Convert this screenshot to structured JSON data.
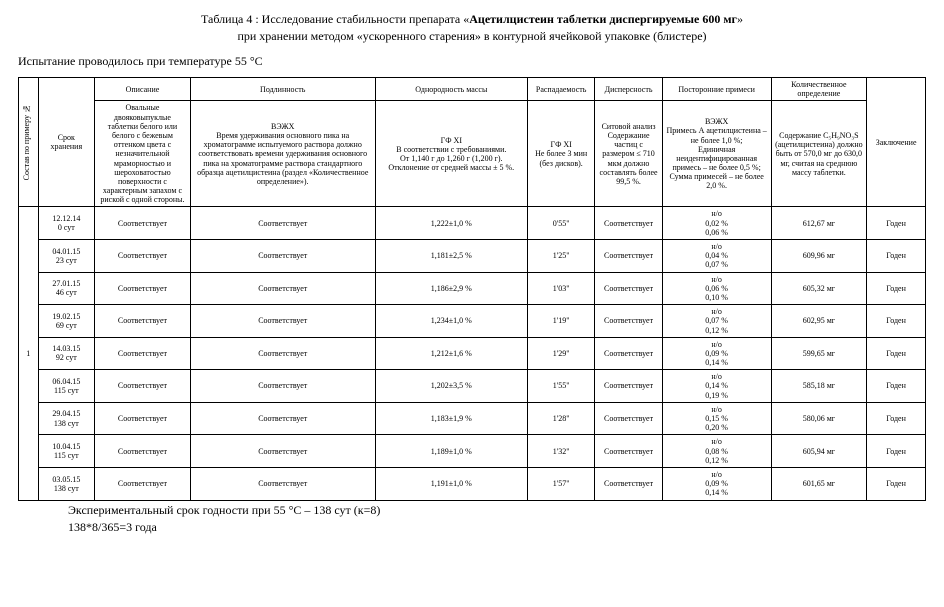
{
  "title_prefix": "Таблица 4 : Исследование стабильности препарата «",
  "title_bold": "Ацетилцистеин таблетки диспергируемые 600 мг",
  "title_suffix": "»",
  "subtitle": "при хранении методом «ускоренного старения» в контурной ячейковой упаковке (блистере)",
  "conditions": "Испытание проводилось при температуре 55 °С",
  "headers": {
    "composition": "Состав по примеру №",
    "storage": "Срок хранения",
    "description": "Описание",
    "authenticity": "Подлинность",
    "mass_uniformity": "Однородность массы",
    "disintegration": "Распадаемость",
    "dispersity": "Дисперсность",
    "impurities": "Посторонние примеси",
    "quantitative": "Количественное определение",
    "conclusion": "Заключение"
  },
  "specs": {
    "description": "Овальные двояковыпуклые таблетки белого или белого с бежевым оттенком цвета с незначительной мраморностью и шероховатостью поверхности с характерным запахом с риской с одной стороны.",
    "authenticity": "ВЭЖХ\nВремя удерживания основного пика на хроматограмме испытуемого раствора должно соответствовать времени удерживания основного пика на хроматограмме раствора стандартного образца ацетилцистеина (раздел «Количественное определение»).",
    "mass_uniformity": "ГФ XI\nВ соответствии с требованиями.\nОт 1,140 г до 1,260 г (1,200 г).\nОтклонение от средней массы ± 5 %.",
    "disintegration": "ГФ XI\nНе более 3 мин (без дисков).",
    "dispersity": "Ситовой анализ\nСодержание частиц с размером ≤ 710 мкм должно составлять более 99,5 %.",
    "impurities": "ВЭЖХ\nПримесь А ацетилцистеина – не более 1,0 %;\nЕдиничная неидентифицированная примесь – не более 0,5 %;\nСумма примесей – не более 2,0 %.",
    "quantitative": "Содержание C₅H₉NO₃S (ацетилцистеина) должно быть от 570,0 мг до 630,0 мг, считая на среднюю массу таблетки."
  },
  "group_no": "1",
  "rows": [
    {
      "date": "12.12.14\n0 сут",
      "desc": "Соответствует",
      "auth": "Соответствует",
      "mass": "1,222±1,0 %",
      "disint": "0'55\"",
      "disp": "Соответствует",
      "imp": "н/о\n0,02 %\n0,06 %",
      "quant": "612,67 мг",
      "concl": "Годен"
    },
    {
      "date": "04.01.15\n23 сут",
      "desc": "Соответствует",
      "auth": "Соответствует",
      "mass": "1,181±2,5 %",
      "disint": "1'25\"",
      "disp": "Соответствует",
      "imp": "н/о\n0,04 %\n0,07 %",
      "quant": "609,96 мг",
      "concl": "Годен"
    },
    {
      "date": "27.01.15\n46 сут",
      "desc": "Соответствует",
      "auth": "Соответствует",
      "mass": "1,186±2,9 %",
      "disint": "1'03\"",
      "disp": "Соответствует",
      "imp": "н/о\n0,06 %\n0,10 %",
      "quant": "605,32 мг",
      "concl": "Годен"
    },
    {
      "date": "19.02.15\n69 сут",
      "desc": "Соответствует",
      "auth": "Соответствует",
      "mass": "1,234±1,0 %",
      "disint": "1'19\"",
      "disp": "Соответствует",
      "imp": "н/о\n0,07 %\n0,12 %",
      "quant": "602,95 мг",
      "concl": "Годен"
    },
    {
      "date": "14.03.15\n92 сут",
      "desc": "Соответствует",
      "auth": "Соответствует",
      "mass": "1,212±1,6 %",
      "disint": "1'29\"",
      "disp": "Соответствует",
      "imp": "н/о\n0,09 %\n0,14 %",
      "quant": "599,65 мг",
      "concl": "Годен"
    },
    {
      "date": "06.04.15\n115 сут",
      "desc": "Соответствует",
      "auth": "Соответствует",
      "mass": "1,202±3,5 %",
      "disint": "1'55\"",
      "disp": "Соответствует",
      "imp": "н/о\n0,14 %\n0,19 %",
      "quant": "585,18 мг",
      "concl": "Годен"
    },
    {
      "date": "29.04.15\n138 сут",
      "desc": "Соответствует",
      "auth": "Соответствует",
      "mass": "1,183±1,9 %",
      "disint": "1'28\"",
      "disp": "Соответствует",
      "imp": "н/о\n0,15 %\n0,20 %",
      "quant": "580,06 мг",
      "concl": "Годен"
    },
    {
      "date": "10.04.15\n115 сут",
      "desc": "Соответствует",
      "auth": "Соответствует",
      "mass": "1,189±1,0 %",
      "disint": "1'32\"",
      "disp": "Соответствует",
      "imp": "н/о\n0,08 %\n0,12 %",
      "quant": "605,94 мг",
      "concl": "Годен"
    },
    {
      "date": "03.05.15\n138 сут",
      "desc": "Соответствует",
      "auth": "Соответствует",
      "mass": "1,191±1,0 %",
      "disint": "1'57\"",
      "disp": "Соответствует",
      "imp": "н/о\n0,09 %\n0,14 %",
      "quant": "601,65 мг",
      "concl": "Годен"
    }
  ],
  "footer1": "Экспериментальный срок годности при 55 °С – 138 сут (к=8)",
  "footer2": "138*8/365=3 года"
}
